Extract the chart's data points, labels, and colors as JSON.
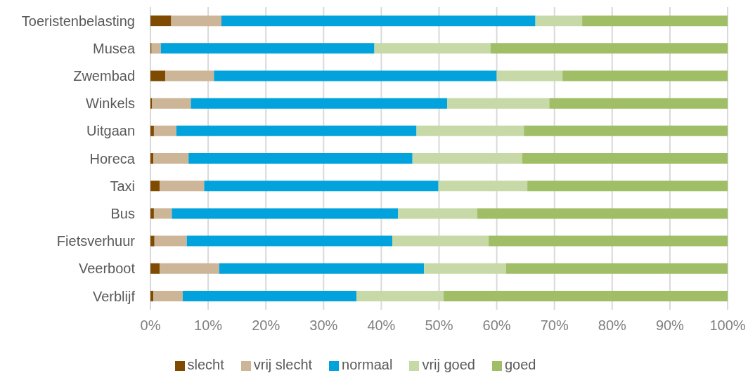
{
  "chart_data": {
    "type": "bar",
    "orientation": "horizontal",
    "stacked": true,
    "categories": [
      "Toeristenbelasting",
      "Musea",
      "Zwembad",
      "Winkels",
      "Uitgaan",
      "Horeca",
      "Taxi",
      "Bus",
      "Fietsverhuur",
      "Veerboot",
      "Verblijf"
    ],
    "series": [
      {
        "name": "slecht",
        "color": "#7f4b00",
        "values": [
          3.6,
          0.2,
          2.6,
          0.3,
          0.6,
          0.5,
          1.6,
          0.6,
          0.7,
          1.6,
          0.5
        ]
      },
      {
        "name": "vrij slecht",
        "color": "#cdb597",
        "values": [
          8.7,
          1.6,
          8.4,
          6.7,
          3.9,
          6.1,
          7.7,
          3.1,
          5.6,
          10.3,
          5.1
        ]
      },
      {
        "name": "normaal",
        "color": "#02a3dd",
        "values": [
          54.4,
          37.0,
          49.0,
          44.4,
          41.6,
          38.8,
          40.6,
          39.2,
          35.6,
          35.5,
          30.1
        ]
      },
      {
        "name": "vrij goed",
        "color": "#c6d9a6",
        "values": [
          8.1,
          20.1,
          11.4,
          17.7,
          18.6,
          19.0,
          15.4,
          13.7,
          16.7,
          14.2,
          15.1
        ]
      },
      {
        "name": "goed",
        "color": "#9fbe66",
        "values": [
          25.2,
          41.1,
          28.6,
          30.9,
          35.3,
          35.6,
          34.7,
          43.4,
          41.4,
          38.4,
          49.2
        ]
      }
    ],
    "xlim": [
      0,
      100
    ],
    "xticks": [
      {
        "value": 0,
        "label": "0%"
      },
      {
        "value": 10,
        "label": "10%"
      },
      {
        "value": 20,
        "label": "20%"
      },
      {
        "value": 30,
        "label": "30%"
      },
      {
        "value": 40,
        "label": "40%"
      },
      {
        "value": 50,
        "label": "50%"
      },
      {
        "value": 60,
        "label": "60%"
      },
      {
        "value": 70,
        "label": "70%"
      },
      {
        "value": 80,
        "label": "80%"
      },
      {
        "value": 90,
        "label": "90%"
      },
      {
        "value": 100,
        "label": "100%"
      }
    ],
    "grid": "x",
    "legend": "bottom"
  }
}
